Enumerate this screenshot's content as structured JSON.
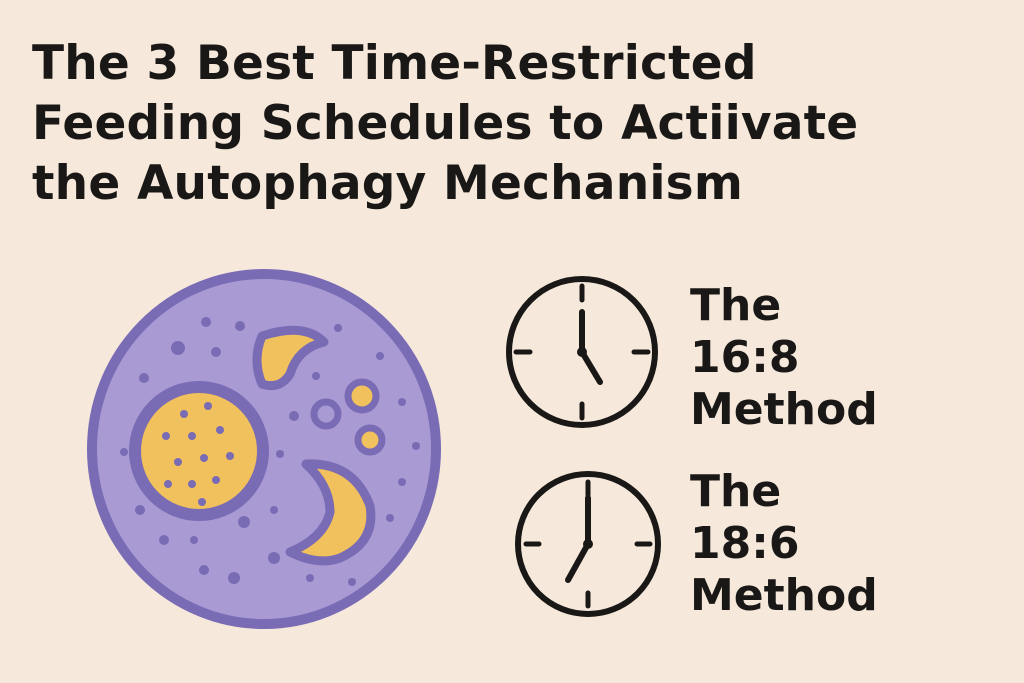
{
  "title": {
    "line1": "The 3 Best Time-Restricted",
    "line2": "Feeding Schedules to Actiivate",
    "line3": "the Autophagy Mechanism"
  },
  "methods": [
    {
      "line1": "The",
      "line2": "16:8",
      "line3": "Method",
      "clock_time": "5:00"
    },
    {
      "line1": "The",
      "line2": "18:6",
      "line3": "Method",
      "clock_time": "7:00"
    }
  ],
  "icons": {
    "cell": "cell-illustration",
    "clock": "clock-icon"
  },
  "colors": {
    "background": "#f6e9dc",
    "text": "#1a1816",
    "cell_fill": "#a99ad4",
    "cell_outline": "#7a6bb5",
    "organelle": "#f0c15c"
  }
}
